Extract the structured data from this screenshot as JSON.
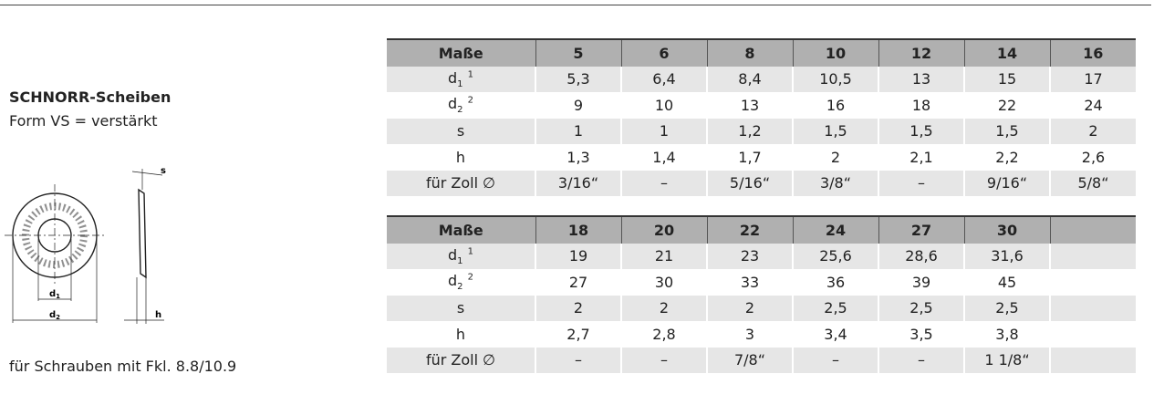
{
  "left": {
    "title": "SCHNORR-Scheiben",
    "subtitle": "Form VS = verstärkt",
    "note": "für Schrauben mit Fkl. 8.8/10.9"
  },
  "diagram": {
    "labels": {
      "s": "s",
      "d1": {
        "base": "d",
        "sub": "1"
      },
      "d2": {
        "base": "d",
        "sub": "2"
      },
      "h": "h"
    }
  },
  "tables": [
    {
      "columns": [
        "Maße",
        "5",
        "6",
        "8",
        "10",
        "12",
        "14",
        "16"
      ],
      "rows": [
        {
          "label": {
            "base": "d",
            "sub": "1",
            "sup": "1"
          },
          "cells": [
            "5,3",
            "6,4",
            "8,4",
            "10,5",
            "13",
            "15",
            "17"
          ]
        },
        {
          "label": {
            "base": "d",
            "sub": "2",
            "sup": "2"
          },
          "cells": [
            "9",
            "10",
            "13",
            "16",
            "18",
            "22",
            "24"
          ]
        },
        {
          "label": {
            "base": "s"
          },
          "cells": [
            "1",
            "1",
            "1,2",
            "1,5",
            "1,5",
            "1,5",
            "2"
          ]
        },
        {
          "label": {
            "base": "h"
          },
          "cells": [
            "1,3",
            "1,4",
            "1,7",
            "2",
            "2,1",
            "2,2",
            "2,6"
          ]
        },
        {
          "label": {
            "base": "für Zoll ∅"
          },
          "cells": [
            "3/16“",
            "–",
            "5/16“",
            "3/8“",
            "–",
            "9/16“",
            "5/8“"
          ]
        }
      ]
    },
    {
      "columns": [
        "Maße",
        "18",
        "20",
        "22",
        "24",
        "27",
        "30"
      ],
      "rows": [
        {
          "label": {
            "base": "d",
            "sub": "1",
            "sup": "1"
          },
          "cells": [
            "19",
            "21",
            "23",
            "25,6",
            "28,6",
            "31,6"
          ]
        },
        {
          "label": {
            "base": "d",
            "sub": "2",
            "sup": "2"
          },
          "cells": [
            "27",
            "30",
            "33",
            "36",
            "39",
            "45"
          ]
        },
        {
          "label": {
            "base": "s"
          },
          "cells": [
            "2",
            "2",
            "2",
            "2,5",
            "2,5",
            "2,5"
          ]
        },
        {
          "label": {
            "base": "h"
          },
          "cells": [
            "2,7",
            "2,8",
            "3",
            "3,4",
            "3,5",
            "3,8"
          ]
        },
        {
          "label": {
            "base": "für Zoll ∅"
          },
          "cells": [
            "–",
            "–",
            "7/8“",
            "–",
            "–",
            "1 1/8“"
          ]
        }
      ]
    }
  ]
}
